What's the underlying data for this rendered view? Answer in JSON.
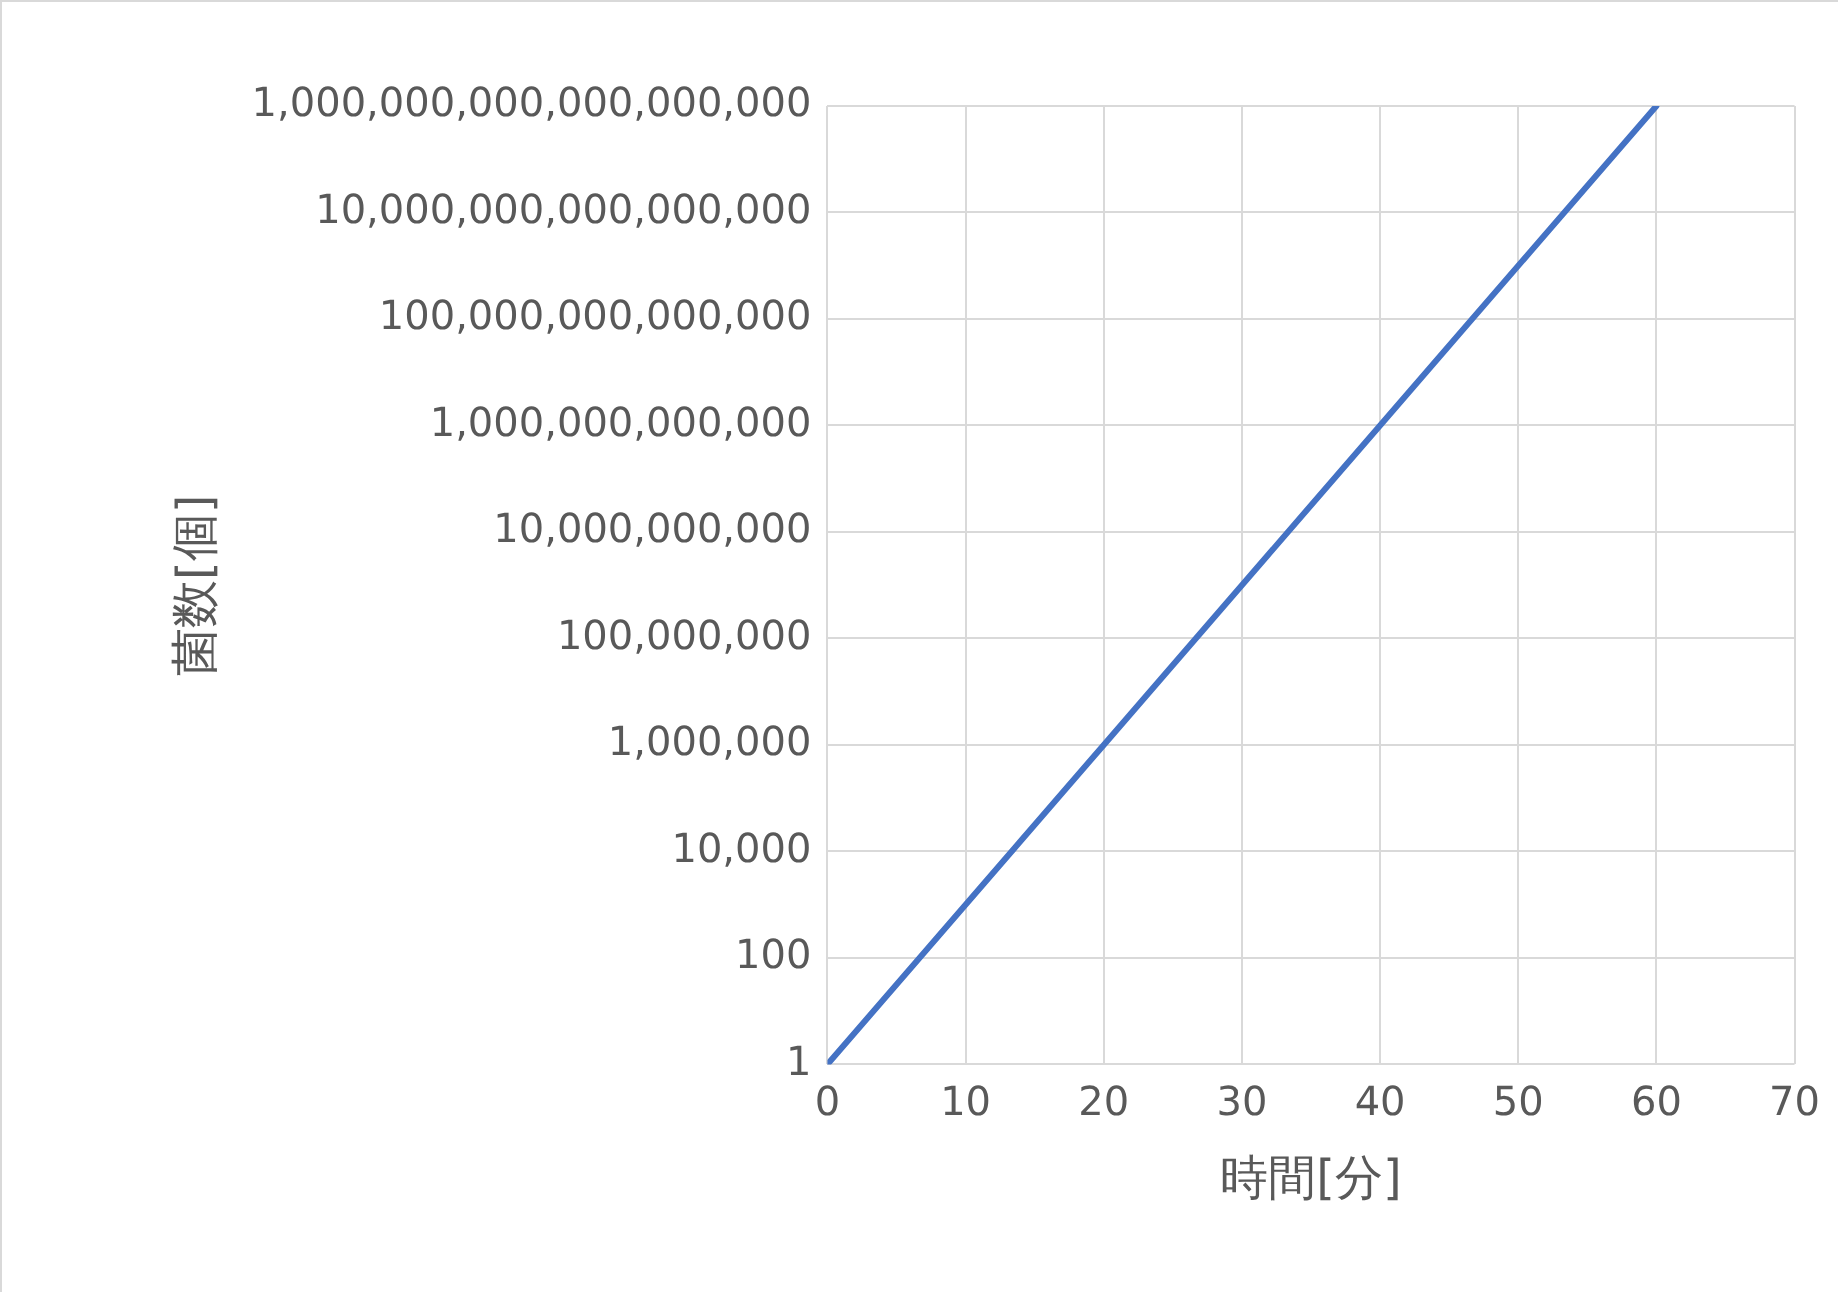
{
  "chart_data": {
    "type": "line",
    "xlabel": "時間[分]",
    "ylabel": "菌数[個]",
    "x": [
      0,
      20,
      40,
      60
    ],
    "series": [
      {
        "color": "#4472c4",
        "values": [
          1,
          1000000,
          1000000000000,
          1000000000000000000
        ]
      }
    ],
    "xlim": [
      0,
      70
    ],
    "xticks": [
      0,
      10,
      20,
      30,
      40,
      50,
      60,
      70
    ],
    "ylim": [
      1,
      1000000000000000000
    ],
    "yticks": [
      {
        "value": 1,
        "label": "1"
      },
      {
        "value": 100,
        "label": "100"
      },
      {
        "value": 10000,
        "label": "10,000"
      },
      {
        "value": 1000000,
        "label": "1,000,000"
      },
      {
        "value": 100000000,
        "label": "100,000,000"
      },
      {
        "value": 10000000000,
        "label": "10,000,000,000"
      },
      {
        "value": 1000000000000,
        "label": "1,000,000,000,000"
      },
      {
        "value": 100000000000000,
        "label": "100,000,000,000,000"
      },
      {
        "value": 10000000000000000,
        "label": "10,000,000,000,000,000"
      },
      {
        "value": 1000000000000000000,
        "label": "1,000,000,000,000,000,000"
      }
    ],
    "log": "y",
    "grid": true,
    "legend": false,
    "marker": "none",
    "line_style": "solid"
  }
}
